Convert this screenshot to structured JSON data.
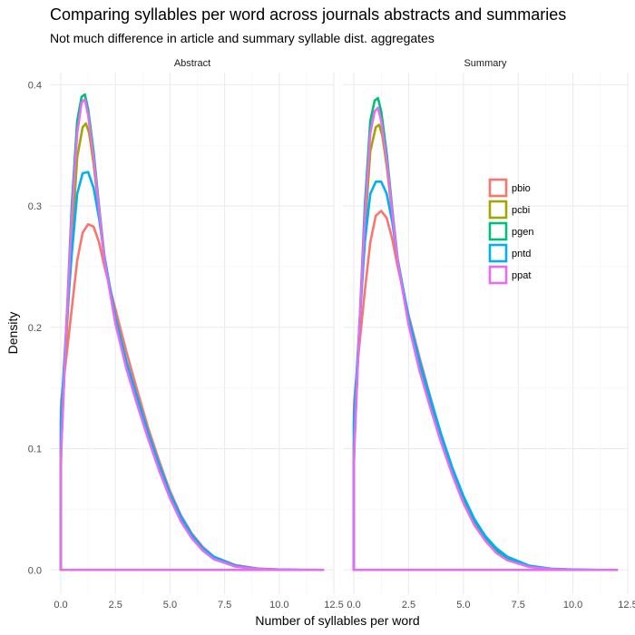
{
  "chart_data": {
    "type": "line",
    "title": "Comparing syllables per word across journals abstracts and summaries",
    "subtitle": "Not much difference in article and summary syllable dist. aggregates",
    "xlabel": "Number of syllables per word",
    "ylabel": "Density",
    "xlim": [
      -0.5,
      12.5
    ],
    "ylim": [
      -0.02,
      0.41
    ],
    "x_ticks": [
      "0.0",
      "2.5",
      "5.0",
      "7.5",
      "10.0",
      "12.5"
    ],
    "x_tick_values": [
      0,
      2.5,
      5,
      7.5,
      10,
      12.5
    ],
    "y_ticks": [
      "0.0",
      "0.1",
      "0.2",
      "0.3",
      "0.4"
    ],
    "y_tick_values": [
      0,
      0.1,
      0.2,
      0.3,
      0.4
    ],
    "grid": true,
    "legend_position": "right-inside",
    "series_colors": {
      "pbio": "#F8766D",
      "pcbi": "#A3A500",
      "pgen": "#00BF7D",
      "pntd": "#00B0F6",
      "ppat": "#E76BF3"
    },
    "panels": [
      {
        "label": "Abstract",
        "series": [
          {
            "name": "pbio",
            "x": [
              0,
              0.02,
              0.25,
              0.5,
              0.75,
              1.0,
              1.25,
              1.5,
              1.75,
              2.0,
              2.5,
              3.0,
              3.5,
              4.0,
              4.5,
              5.0,
              5.5,
              6.0,
              6.5,
              7.0,
              8.0,
              9.0,
              10.0,
              11.0,
              12.0
            ],
            "y": [
              0.13,
              0.14,
              0.175,
              0.215,
              0.255,
              0.278,
              0.285,
              0.283,
              0.27,
              0.25,
              0.215,
              0.18,
              0.148,
              0.117,
              0.09,
              0.065,
              0.045,
              0.03,
              0.019,
              0.011,
              0.004,
              0.0012,
              0.0003,
              0.0001,
              0.0
            ]
          },
          {
            "name": "pcbi",
            "x": [
              0,
              0.02,
              0.25,
              0.5,
              0.75,
              1.0,
              1.15,
              1.3,
              1.5,
              1.75,
              2.0,
              2.5,
              3.0,
              3.5,
              4.0,
              4.5,
              5.0,
              5.5,
              6.0,
              6.5,
              7.0,
              8.0,
              9.0,
              10.0,
              11.0,
              12.0
            ],
            "y": [
              0.1,
              0.12,
              0.19,
              0.27,
              0.34,
              0.365,
              0.368,
              0.36,
              0.335,
              0.295,
              0.255,
              0.208,
              0.172,
              0.142,
              0.113,
              0.087,
              0.063,
              0.043,
              0.028,
              0.017,
              0.01,
              0.003,
              0.0008,
              0.0002,
              0.0,
              0.0
            ]
          },
          {
            "name": "pgen",
            "x": [
              0,
              0.02,
              0.25,
              0.5,
              0.75,
              0.95,
              1.1,
              1.25,
              1.5,
              1.75,
              2.0,
              2.5,
              3.0,
              3.5,
              4.0,
              4.5,
              5.0,
              5.5,
              6.0,
              6.5,
              7.0,
              8.0,
              9.0,
              10.0,
              11.0,
              12.0
            ],
            "y": [
              0.08,
              0.1,
              0.2,
              0.3,
              0.37,
              0.39,
              0.392,
              0.38,
              0.345,
              0.3,
              0.258,
              0.205,
              0.168,
              0.138,
              0.11,
              0.083,
              0.06,
              0.041,
              0.027,
              0.016,
              0.009,
              0.0028,
              0.0007,
              0.0002,
              0.0,
              0.0
            ]
          },
          {
            "name": "pntd",
            "x": [
              0,
              0.02,
              0.25,
              0.5,
              0.75,
              1.0,
              1.25,
              1.5,
              1.75,
              2.0,
              2.5,
              3.0,
              3.5,
              4.0,
              4.5,
              5.0,
              5.5,
              6.0,
              6.5,
              7.0,
              8.0,
              9.0,
              10.0,
              11.0,
              12.0
            ],
            "y": [
              0.12,
              0.13,
              0.2,
              0.26,
              0.31,
              0.327,
              0.328,
              0.315,
              0.29,
              0.258,
              0.208,
              0.172,
              0.142,
              0.113,
              0.087,
              0.063,
              0.044,
              0.029,
              0.018,
              0.011,
              0.0035,
              0.001,
              0.0003,
              0.0001,
              0.0
            ]
          },
          {
            "name": "ppat",
            "x": [
              0,
              0.02,
              0.25,
              0.5,
              0.75,
              0.95,
              1.1,
              1.25,
              1.5,
              1.75,
              2.0,
              2.5,
              3.0,
              3.5,
              4.0,
              4.5,
              5.0,
              5.5,
              6.0,
              6.5,
              7.0,
              8.0,
              9.0,
              10.0,
              11.0,
              12.0
            ],
            "y": [
              0.085,
              0.1,
              0.2,
              0.29,
              0.36,
              0.385,
              0.388,
              0.375,
              0.34,
              0.297,
              0.255,
              0.203,
              0.166,
              0.136,
              0.108,
              0.082,
              0.059,
              0.04,
              0.026,
              0.016,
              0.009,
              0.0027,
              0.0007,
              0.0002,
              0.0,
              0.0
            ]
          }
        ]
      },
      {
        "label": "Summary",
        "series": [
          {
            "name": "pbio",
            "x": [
              0,
              0.02,
              0.25,
              0.5,
              0.75,
              1.0,
              1.25,
              1.5,
              1.75,
              2.0,
              2.5,
              3.0,
              3.5,
              4.0,
              4.5,
              5.0,
              5.5,
              6.0,
              6.5,
              7.0,
              8.0,
              9.0,
              10.0,
              11.0,
              12.0
            ],
            "y": [
              0.13,
              0.14,
              0.185,
              0.23,
              0.27,
              0.292,
              0.296,
              0.29,
              0.273,
              0.25,
              0.21,
              0.175,
              0.142,
              0.11,
              0.082,
              0.058,
              0.039,
              0.025,
              0.015,
              0.009,
              0.003,
              0.0008,
              0.0002,
              0.0,
              0.0
            ]
          },
          {
            "name": "pcbi",
            "x": [
              0,
              0.02,
              0.25,
              0.5,
              0.75,
              1.0,
              1.15,
              1.3,
              1.5,
              1.75,
              2.0,
              2.5,
              3.0,
              3.5,
              4.0,
              4.5,
              5.0,
              5.5,
              6.0,
              6.5,
              7.0,
              8.0,
              9.0,
              10.0,
              11.0,
              12.0
            ],
            "y": [
              0.1,
              0.12,
              0.2,
              0.28,
              0.345,
              0.365,
              0.367,
              0.358,
              0.333,
              0.293,
              0.253,
              0.205,
              0.168,
              0.138,
              0.109,
              0.082,
              0.059,
              0.04,
              0.026,
              0.016,
              0.009,
              0.0028,
              0.0007,
              0.0002,
              0.0,
              0.0
            ]
          },
          {
            "name": "pgen",
            "x": [
              0,
              0.02,
              0.25,
              0.5,
              0.75,
              0.95,
              1.1,
              1.25,
              1.5,
              1.75,
              2.0,
              2.5,
              3.0,
              3.5,
              4.0,
              4.5,
              5.0,
              5.5,
              6.0,
              6.5,
              7.0,
              8.0,
              9.0,
              10.0,
              11.0,
              12.0
            ],
            "y": [
              0.085,
              0.1,
              0.2,
              0.3,
              0.37,
              0.387,
              0.389,
              0.378,
              0.343,
              0.298,
              0.256,
              0.204,
              0.167,
              0.137,
              0.109,
              0.083,
              0.06,
              0.041,
              0.027,
              0.016,
              0.009,
              0.0028,
              0.0007,
              0.0002,
              0.0,
              0.0
            ]
          },
          {
            "name": "pntd",
            "x": [
              0,
              0.02,
              0.25,
              0.5,
              0.75,
              1.0,
              1.25,
              1.5,
              1.75,
              2.0,
              2.5,
              3.0,
              3.5,
              4.0,
              4.5,
              5.0,
              5.5,
              6.0,
              6.5,
              7.0,
              8.0,
              9.0,
              10.0,
              11.0,
              12.0
            ],
            "y": [
              0.12,
              0.13,
              0.2,
              0.27,
              0.31,
              0.32,
              0.32,
              0.31,
              0.287,
              0.256,
              0.208,
              0.172,
              0.141,
              0.111,
              0.084,
              0.061,
              0.042,
              0.028,
              0.018,
              0.011,
              0.0035,
              0.001,
              0.0003,
              0.0001,
              0.0
            ]
          },
          {
            "name": "ppat",
            "x": [
              0,
              0.02,
              0.25,
              0.5,
              0.75,
              0.95,
              1.1,
              1.25,
              1.5,
              1.75,
              2.0,
              2.5,
              3.0,
              3.5,
              4.0,
              4.5,
              5.0,
              5.5,
              6.0,
              6.5,
              7.0,
              8.0,
              9.0,
              10.0,
              11.0,
              12.0
            ],
            "y": [
              0.085,
              0.1,
              0.2,
              0.29,
              0.36,
              0.378,
              0.381,
              0.37,
              0.337,
              0.295,
              0.254,
              0.202,
              0.164,
              0.133,
              0.104,
              0.078,
              0.055,
              0.037,
              0.024,
              0.014,
              0.008,
              0.0024,
              0.0006,
              0.0001,
              0.0,
              0.0
            ]
          }
        ]
      }
    ]
  }
}
